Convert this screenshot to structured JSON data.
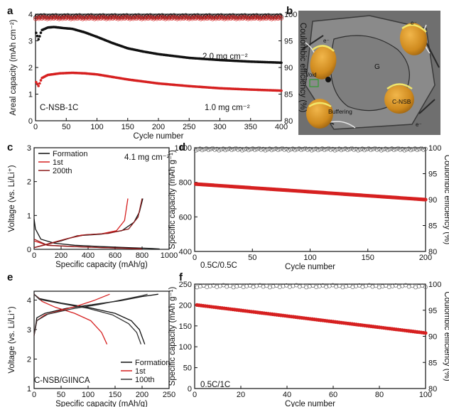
{
  "panels": [
    {
      "label": "a"
    },
    {
      "label": "b"
    },
    {
      "label": "c"
    },
    {
      "label": "d"
    },
    {
      "label": "e"
    },
    {
      "label": "f"
    }
  ],
  "chart_data": [
    {
      "id": "a",
      "type": "scatter",
      "xlabel": "Cycle number",
      "ylabel": "Areal capacity (mAh cm⁻²)",
      "ylabel_right": "Coulombic efficiency (%)",
      "xlim": [
        0,
        400
      ],
      "ylim": [
        0,
        4
      ],
      "ylim_right": [
        80,
        100
      ],
      "xticks": [
        0,
        50,
        100,
        150,
        200,
        250,
        300,
        350,
        400
      ],
      "yticks": [
        0,
        1,
        2,
        3,
        4
      ],
      "yticks_right": [
        80,
        85,
        90,
        95,
        100
      ],
      "annotations": [
        "C-NSB-1C",
        "2.0 mg cm⁻²",
        "1.0 mg cm⁻²"
      ],
      "series": [
        {
          "color": "#111111",
          "axis": "left",
          "x": [
            1,
            5,
            10,
            20,
            30,
            45,
            60,
            80,
            100,
            125,
            150,
            175,
            200,
            250,
            300,
            350,
            400
          ],
          "values": [
            3.3,
            3.05,
            3.4,
            3.5,
            3.52,
            3.48,
            3.45,
            3.32,
            3.15,
            2.92,
            2.72,
            2.6,
            2.5,
            2.36,
            2.28,
            2.22,
            2.18
          ]
        },
        {
          "color": "#d62020",
          "axis": "left",
          "x": [
            1,
            5,
            10,
            20,
            40,
            60,
            80,
            100,
            150,
            200,
            250,
            300,
            350,
            400
          ],
          "values": [
            1.45,
            1.3,
            1.6,
            1.72,
            1.78,
            1.8,
            1.78,
            1.74,
            1.55,
            1.4,
            1.3,
            1.22,
            1.17,
            1.13
          ]
        },
        {
          "color": "#111111",
          "axis": "right",
          "marker": "open-circle",
          "x": [
            0,
            400
          ],
          "values": [
            99.6,
            99.6
          ]
        },
        {
          "color": "#d62020",
          "axis": "right",
          "marker": "open-circle",
          "x": [
            0,
            400
          ],
          "values": [
            99.3,
            99.3
          ]
        }
      ]
    },
    {
      "id": "b",
      "type": "diagram",
      "labels": [
        "G",
        "Void",
        "Buffering",
        "C-NSB",
        "e⁻"
      ]
    },
    {
      "id": "c",
      "type": "line",
      "xlabel": "Specific capacity (mAh/g)",
      "ylabel": "Voltage (vs. Li/Li⁺)",
      "xlim": [
        0,
        1000
      ],
      "ylim": [
        0,
        3
      ],
      "xticks": [
        0,
        200,
        400,
        600,
        800,
        1000
      ],
      "yticks": [
        0,
        1,
        2,
        3
      ],
      "annotation": "4.1 mg cm⁻²",
      "legend": [
        "Formation",
        "1st",
        "200th"
      ],
      "legend_position": "top-left",
      "series": [
        {
          "name": "Formation",
          "color": "#111111",
          "discharge": [
            [
              0,
              0.9
            ],
            [
              10,
              0.6
            ],
            [
              50,
              0.3
            ],
            [
              150,
              0.18
            ],
            [
              300,
              0.12
            ],
            [
              500,
              0.08
            ],
            [
              700,
              0.05
            ],
            [
              850,
              0.03
            ],
            [
              930,
              0.01
            ]
          ],
          "charge": [
            [
              0,
              0.05
            ],
            [
              100,
              0.15
            ],
            [
              200,
              0.25
            ],
            [
              320,
              0.4
            ],
            [
              500,
              0.45
            ],
            [
              650,
              0.55
            ],
            [
              740,
              0.8
            ],
            [
              780,
              1.1
            ],
            [
              805,
              1.5
            ]
          ]
        },
        {
          "name": "1st",
          "color": "#d62020",
          "discharge": [
            [
              0,
              0.25
            ],
            [
              100,
              0.12
            ],
            [
              300,
              0.08
            ],
            [
              500,
              0.05
            ],
            [
              700,
              0.03
            ],
            [
              790,
              0.01
            ]
          ],
          "charge": [
            [
              0,
              0.05
            ],
            [
              100,
              0.15
            ],
            [
              230,
              0.3
            ],
            [
              350,
              0.42
            ],
            [
              500,
              0.46
            ],
            [
              610,
              0.55
            ],
            [
              670,
              0.85
            ],
            [
              695,
              1.5
            ]
          ]
        },
        {
          "name": "200th",
          "color": "#8b1a1a",
          "discharge": [
            [
              0,
              0.3
            ],
            [
              100,
              0.12
            ],
            [
              300,
              0.08
            ],
            [
              500,
              0.05
            ],
            [
              700,
              0.03
            ],
            [
              800,
              0.01
            ]
          ],
          "charge": [
            [
              0,
              0.05
            ],
            [
              120,
              0.18
            ],
            [
              250,
              0.32
            ],
            [
              380,
              0.43
            ],
            [
              550,
              0.47
            ],
            [
              700,
              0.6
            ],
            [
              770,
              0.95
            ],
            [
              800,
              1.5
            ]
          ]
        }
      ]
    },
    {
      "id": "d",
      "type": "scatter",
      "xlabel": "Cycle number",
      "ylabel": "Specific capacity (mAh g⁻¹)",
      "ylabel_right": "Coulombic efficiency (%)",
      "xlim": [
        0,
        200
      ],
      "ylim": [
        400,
        1000
      ],
      "ylim_right": [
        80,
        100
      ],
      "xticks": [
        0,
        50,
        100,
        150,
        200
      ],
      "yticks": [
        400,
        600,
        800,
        1000
      ],
      "yticks_right": [
        80,
        85,
        90,
        95,
        100
      ],
      "annotation": "0.5C/0.5C",
      "series": [
        {
          "color": "#d62020",
          "axis": "left",
          "x": [
            1,
            200
          ],
          "values": [
            790,
            700
          ]
        },
        {
          "color": "#555555",
          "axis": "right",
          "marker": "open-circle",
          "x": [
            1,
            200
          ],
          "values": [
            99.7,
            99.7
          ]
        }
      ]
    },
    {
      "id": "e",
      "type": "line",
      "xlabel": "Specific capacity (mAh/g)",
      "ylabel": "Voltage (vs. Li/Li⁺)",
      "xlim": [
        0,
        250
      ],
      "ylim": [
        1,
        4.3
      ],
      "xticks": [
        0,
        50,
        100,
        150,
        200,
        250
      ],
      "yticks": [
        1,
        2,
        3,
        4
      ],
      "annotation": "C-NSB/GIINCA",
      "legend": [
        "Formation",
        "1st",
        "100th"
      ],
      "legend_position": "bottom-right",
      "series": [
        {
          "name": "Formation",
          "color": "#111111",
          "charge": [
            [
              0,
              2.8
            ],
            [
              5,
              3.4
            ],
            [
              20,
              3.55
            ],
            [
              60,
              3.72
            ],
            [
              110,
              3.85
            ],
            [
              160,
              3.98
            ],
            [
              200,
              4.12
            ],
            [
              230,
              4.2
            ]
          ],
          "discharge": [
            [
              0,
              4.2
            ],
            [
              10,
              4.05
            ],
            [
              50,
              3.9
            ],
            [
              100,
              3.75
            ],
            [
              150,
              3.55
            ],
            [
              180,
              3.3
            ],
            [
              195,
              3.0
            ],
            [
              205,
              2.5
            ]
          ]
        },
        {
          "name": "1st",
          "color": "#d62020",
          "charge": [
            [
              0,
              2.8
            ],
            [
              5,
              3.3
            ],
            [
              20,
              3.5
            ],
            [
              50,
              3.65
            ],
            [
              80,
              3.8
            ],
            [
              110,
              3.98
            ],
            [
              140,
              4.2
            ]
          ],
          "discharge": [
            [
              0,
              4.2
            ],
            [
              15,
              3.95
            ],
            [
              40,
              3.75
            ],
            [
              75,
              3.55
            ],
            [
              105,
              3.3
            ],
            [
              125,
              2.9
            ],
            [
              135,
              2.5
            ]
          ]
        },
        {
          "name": "100th",
          "color": "#333333",
          "charge": [
            [
              0,
              2.8
            ],
            [
              5,
              3.3
            ],
            [
              25,
              3.52
            ],
            [
              70,
              3.7
            ],
            [
              120,
              3.85
            ],
            [
              160,
              4.0
            ],
            [
              200,
              4.15
            ],
            [
              210,
              4.2
            ]
          ],
          "discharge": [
            [
              0,
              4.2
            ],
            [
              10,
              4.02
            ],
            [
              50,
              3.88
            ],
            [
              100,
              3.72
            ],
            [
              145,
              3.5
            ],
            [
              175,
              3.2
            ],
            [
              190,
              2.9
            ],
            [
              198,
              2.5
            ]
          ]
        }
      ]
    },
    {
      "id": "f",
      "type": "scatter",
      "xlabel": "Cycle number",
      "ylabel": "Specific capacity (mAh g⁻¹)",
      "ylabel_right": "Coulombic efficiency (%)",
      "xlim": [
        0,
        100
      ],
      "ylim": [
        0,
        250
      ],
      "ylim_right": [
        80,
        100
      ],
      "xticks": [
        0,
        20,
        40,
        60,
        80,
        100
      ],
      "yticks": [
        0,
        50,
        100,
        150,
        200,
        250
      ],
      "yticks_right": [
        80,
        85,
        90,
        95,
        100
      ],
      "annotation": "0.5C/1C",
      "series": [
        {
          "color": "#d62020",
          "axis": "left",
          "x": [
            1,
            100
          ],
          "values": [
            200,
            133
          ]
        },
        {
          "color": "#555555",
          "axis": "right",
          "marker": "open-circle",
          "x": [
            1,
            100
          ],
          "values": [
            99.6,
            99.6
          ]
        }
      ]
    }
  ]
}
